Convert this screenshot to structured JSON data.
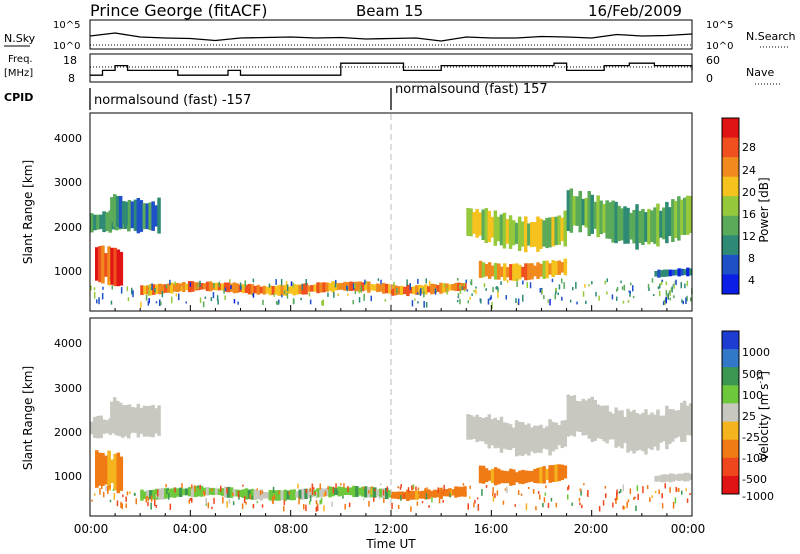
{
  "header": {
    "station": "Prince George (fitACF)",
    "beam": "Beam 15",
    "date": "16/Feb/2009"
  },
  "panels": {
    "nsky": {
      "label": "N.Sky",
      "ticks": [
        "10^5",
        "10^0"
      ],
      "right_label": "N.Search",
      "right_ticks": [
        "10^5",
        "10^0"
      ]
    },
    "freq": {
      "label_line1": "Freq.",
      "label_line2": "[MHz]",
      "ticks": [
        "18",
        "8"
      ],
      "right_label": "Nave",
      "right_ticks": [
        "60",
        "0"
      ]
    },
    "cpid": {
      "label": "CPID",
      "segments": [
        {
          "text": "normalsound (fast) -157"
        },
        {
          "text": "normalsound (fast) 157"
        }
      ]
    },
    "power": {
      "ylabel": "Slant Range [km]",
      "yticks": [
        "4000",
        "3000",
        "2000",
        "1000"
      ],
      "cb_label": "Power [dB]",
      "cb_ticks": [
        "28",
        "24",
        "20",
        "16",
        "12",
        "8",
        "4"
      ]
    },
    "velocity": {
      "ylabel": "Slant Range [km]",
      "yticks": [
        "4000",
        "3000",
        "2000",
        "1000"
      ],
      "cb_label": "Velocity [m s",
      "cb_label_sup": "-1",
      "cb_label_end": "]",
      "cb_ticks": [
        "1000",
        "500",
        "100",
        "25",
        "-25",
        "-100",
        "-500",
        "-1000"
      ]
    }
  },
  "xaxis": {
    "label": "Time UT",
    "ticks": [
      "00:00",
      "04:00",
      "08:00",
      "12:00",
      "16:00",
      "20:00",
      "00:00"
    ]
  },
  "colors": {
    "power_scale": [
      "#0a1ee6",
      "#1e50c8",
      "#2e8a74",
      "#5aaa5a",
      "#96c83c",
      "#f5c21e",
      "#f08a1e",
      "#f0501e",
      "#e01414"
    ],
    "velocity_scale": [
      "#1e3cd2",
      "#3278c8",
      "#3a9650",
      "#6ec83c",
      "#c8c8c0",
      "#f5b41e",
      "#f07a14",
      "#f0461e",
      "#e01414"
    ]
  },
  "chart_data": [
    {
      "type": "line",
      "title": "N.Sky",
      "ylim_log10": [
        0,
        5
      ],
      "x_hours": [
        0,
        1,
        2,
        3,
        4,
        5,
        6,
        7,
        8,
        9,
        10,
        11,
        12,
        13,
        14,
        15,
        16,
        17,
        18,
        19,
        20,
        21,
        22,
        23,
        24
      ],
      "values_log10": [
        2.2,
        2.8,
        2.0,
        1.8,
        1.7,
        1.3,
        1.8,
        1.9,
        2.0,
        1.8,
        1.9,
        1.6,
        1.7,
        1.8,
        1.2,
        2.0,
        1.8,
        1.8,
        2.1,
        2.0,
        1.8,
        2.5,
        2.2,
        2.3,
        2.6
      ]
    },
    {
      "type": "line",
      "title": "Freq.",
      "ylim": [
        8,
        18
      ],
      "x_hours": [
        0,
        0.5,
        1.0,
        1.5,
        3.5,
        5.5,
        6.0,
        10.0,
        12.0,
        12.5,
        14.0,
        16.0,
        18.5,
        19.0,
        19.5,
        20.5,
        21.5,
        22.5,
        24
      ],
      "values": [
        10,
        12,
        14,
        12,
        10,
        12,
        10,
        15,
        15,
        12,
        14,
        14,
        15,
        12,
        12,
        14,
        15,
        14,
        12
      ]
    },
    {
      "type": "heatmap",
      "title": "Power [dB]",
      "ylabel": "Slant Range [km]",
      "xlabel": "Time UT",
      "ylim": [
        200,
        4500
      ],
      "zlim": [
        0,
        30
      ],
      "bands": [
        {
          "t0": 0.0,
          "t1": 1.6,
          "r0": 1800,
          "r1": 2300,
          "value": 10
        },
        {
          "t0": 0.2,
          "t1": 1.3,
          "r0": 600,
          "r1": 1500,
          "value": 26
        },
        {
          "t0": 0.8,
          "t1": 2.8,
          "r0": 2000,
          "r1": 2800,
          "value": 8
        },
        {
          "t0": 2.0,
          "t1": 12.0,
          "r0": 550,
          "r1": 800,
          "value": 22
        },
        {
          "t0": 12.0,
          "t1": 15.0,
          "r0": 550,
          "r1": 800,
          "value": 22
        },
        {
          "t0": 15.0,
          "t1": 19.0,
          "r0": 1600,
          "r1": 2400,
          "value": 16
        },
        {
          "t0": 15.5,
          "t1": 19.0,
          "r0": 900,
          "r1": 1300,
          "value": 20
        },
        {
          "t0": 19.0,
          "t1": 24.0,
          "r0": 1700,
          "r1": 2700,
          "value": 12
        },
        {
          "t0": 22.5,
          "t1": 24.0,
          "r0": 900,
          "r1": 1100,
          "value": 6
        }
      ]
    },
    {
      "type": "heatmap",
      "title": "Velocity [m s-1]",
      "ylabel": "Slant Range [km]",
      "xlabel": "Time UT",
      "ylim": [
        200,
        4500
      ],
      "zlim": [
        -1000,
        1000
      ],
      "bands": [
        {
          "t0": 0.0,
          "t1": 1.6,
          "r0": 1800,
          "r1": 2300,
          "value": 0
        },
        {
          "t0": 0.2,
          "t1": 1.3,
          "r0": 600,
          "r1": 1500,
          "value": -150
        },
        {
          "t0": 0.8,
          "t1": 2.8,
          "r0": 2000,
          "r1": 2800,
          "value": 0
        },
        {
          "t0": 2.0,
          "t1": 12.0,
          "r0": 550,
          "r1": 800,
          "value": 60
        },
        {
          "t0": 12.0,
          "t1": 15.0,
          "r0": 550,
          "r1": 800,
          "value": -150
        },
        {
          "t0": 15.0,
          "t1": 19.0,
          "r0": 1600,
          "r1": 2400,
          "value": 0
        },
        {
          "t0": 15.5,
          "t1": 19.0,
          "r0": 900,
          "r1": 1300,
          "value": -150
        },
        {
          "t0": 19.0,
          "t1": 24.0,
          "r0": 1700,
          "r1": 2700,
          "value": 0
        },
        {
          "t0": 22.5,
          "t1": 24.0,
          "r0": 900,
          "r1": 1100,
          "value": 0
        }
      ]
    }
  ]
}
